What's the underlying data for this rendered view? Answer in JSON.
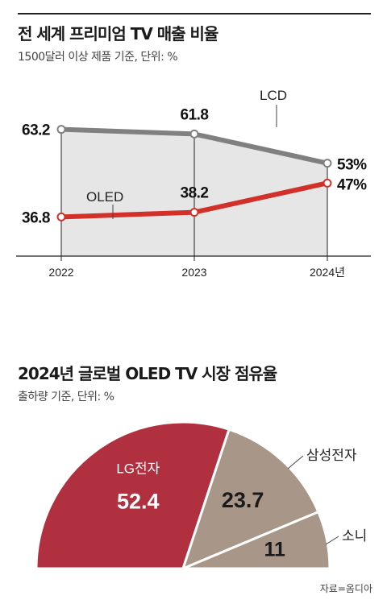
{
  "chart_data": [
    {
      "type": "line",
      "title": "전 세계 프리미엄 TV 매출 비율",
      "subtitle": "1500달러 이상 제품 기준, 단위: %",
      "categories": [
        "2022",
        "2023",
        "2024년"
      ],
      "series": [
        {
          "name": "LCD",
          "values": [
            63.2,
            61.8,
            53
          ],
          "labels": [
            "63.2",
            "61.8",
            "53%"
          ],
          "color": "#808080"
        },
        {
          "name": "OLED",
          "values": [
            36.8,
            38.2,
            47
          ],
          "labels": [
            "36.8",
            "38.2",
            "47%"
          ],
          "color": "#d2312a"
        }
      ],
      "ylim": [
        25,
        75
      ],
      "area_fill": "#e6e6e6"
    },
    {
      "type": "pie",
      "title": "2024년 글로벌 OLED TV 시장 점유율",
      "subtitle": "출하량 기준, 단위: %",
      "slices": [
        {
          "name": "LG전자",
          "value": 52.4,
          "label": "52.4",
          "color": "#b03040",
          "label_inside": true
        },
        {
          "name": "삼성전자",
          "value": 23.7,
          "label": "23.7",
          "color": "#a89788",
          "label_inside": false
        },
        {
          "name": "소니",
          "value": 11,
          "label": "11",
          "color": "#a89788",
          "label_inside": false
        }
      ],
      "total_visible_percent": 87.1,
      "source": "자료=옴디아"
    }
  ]
}
